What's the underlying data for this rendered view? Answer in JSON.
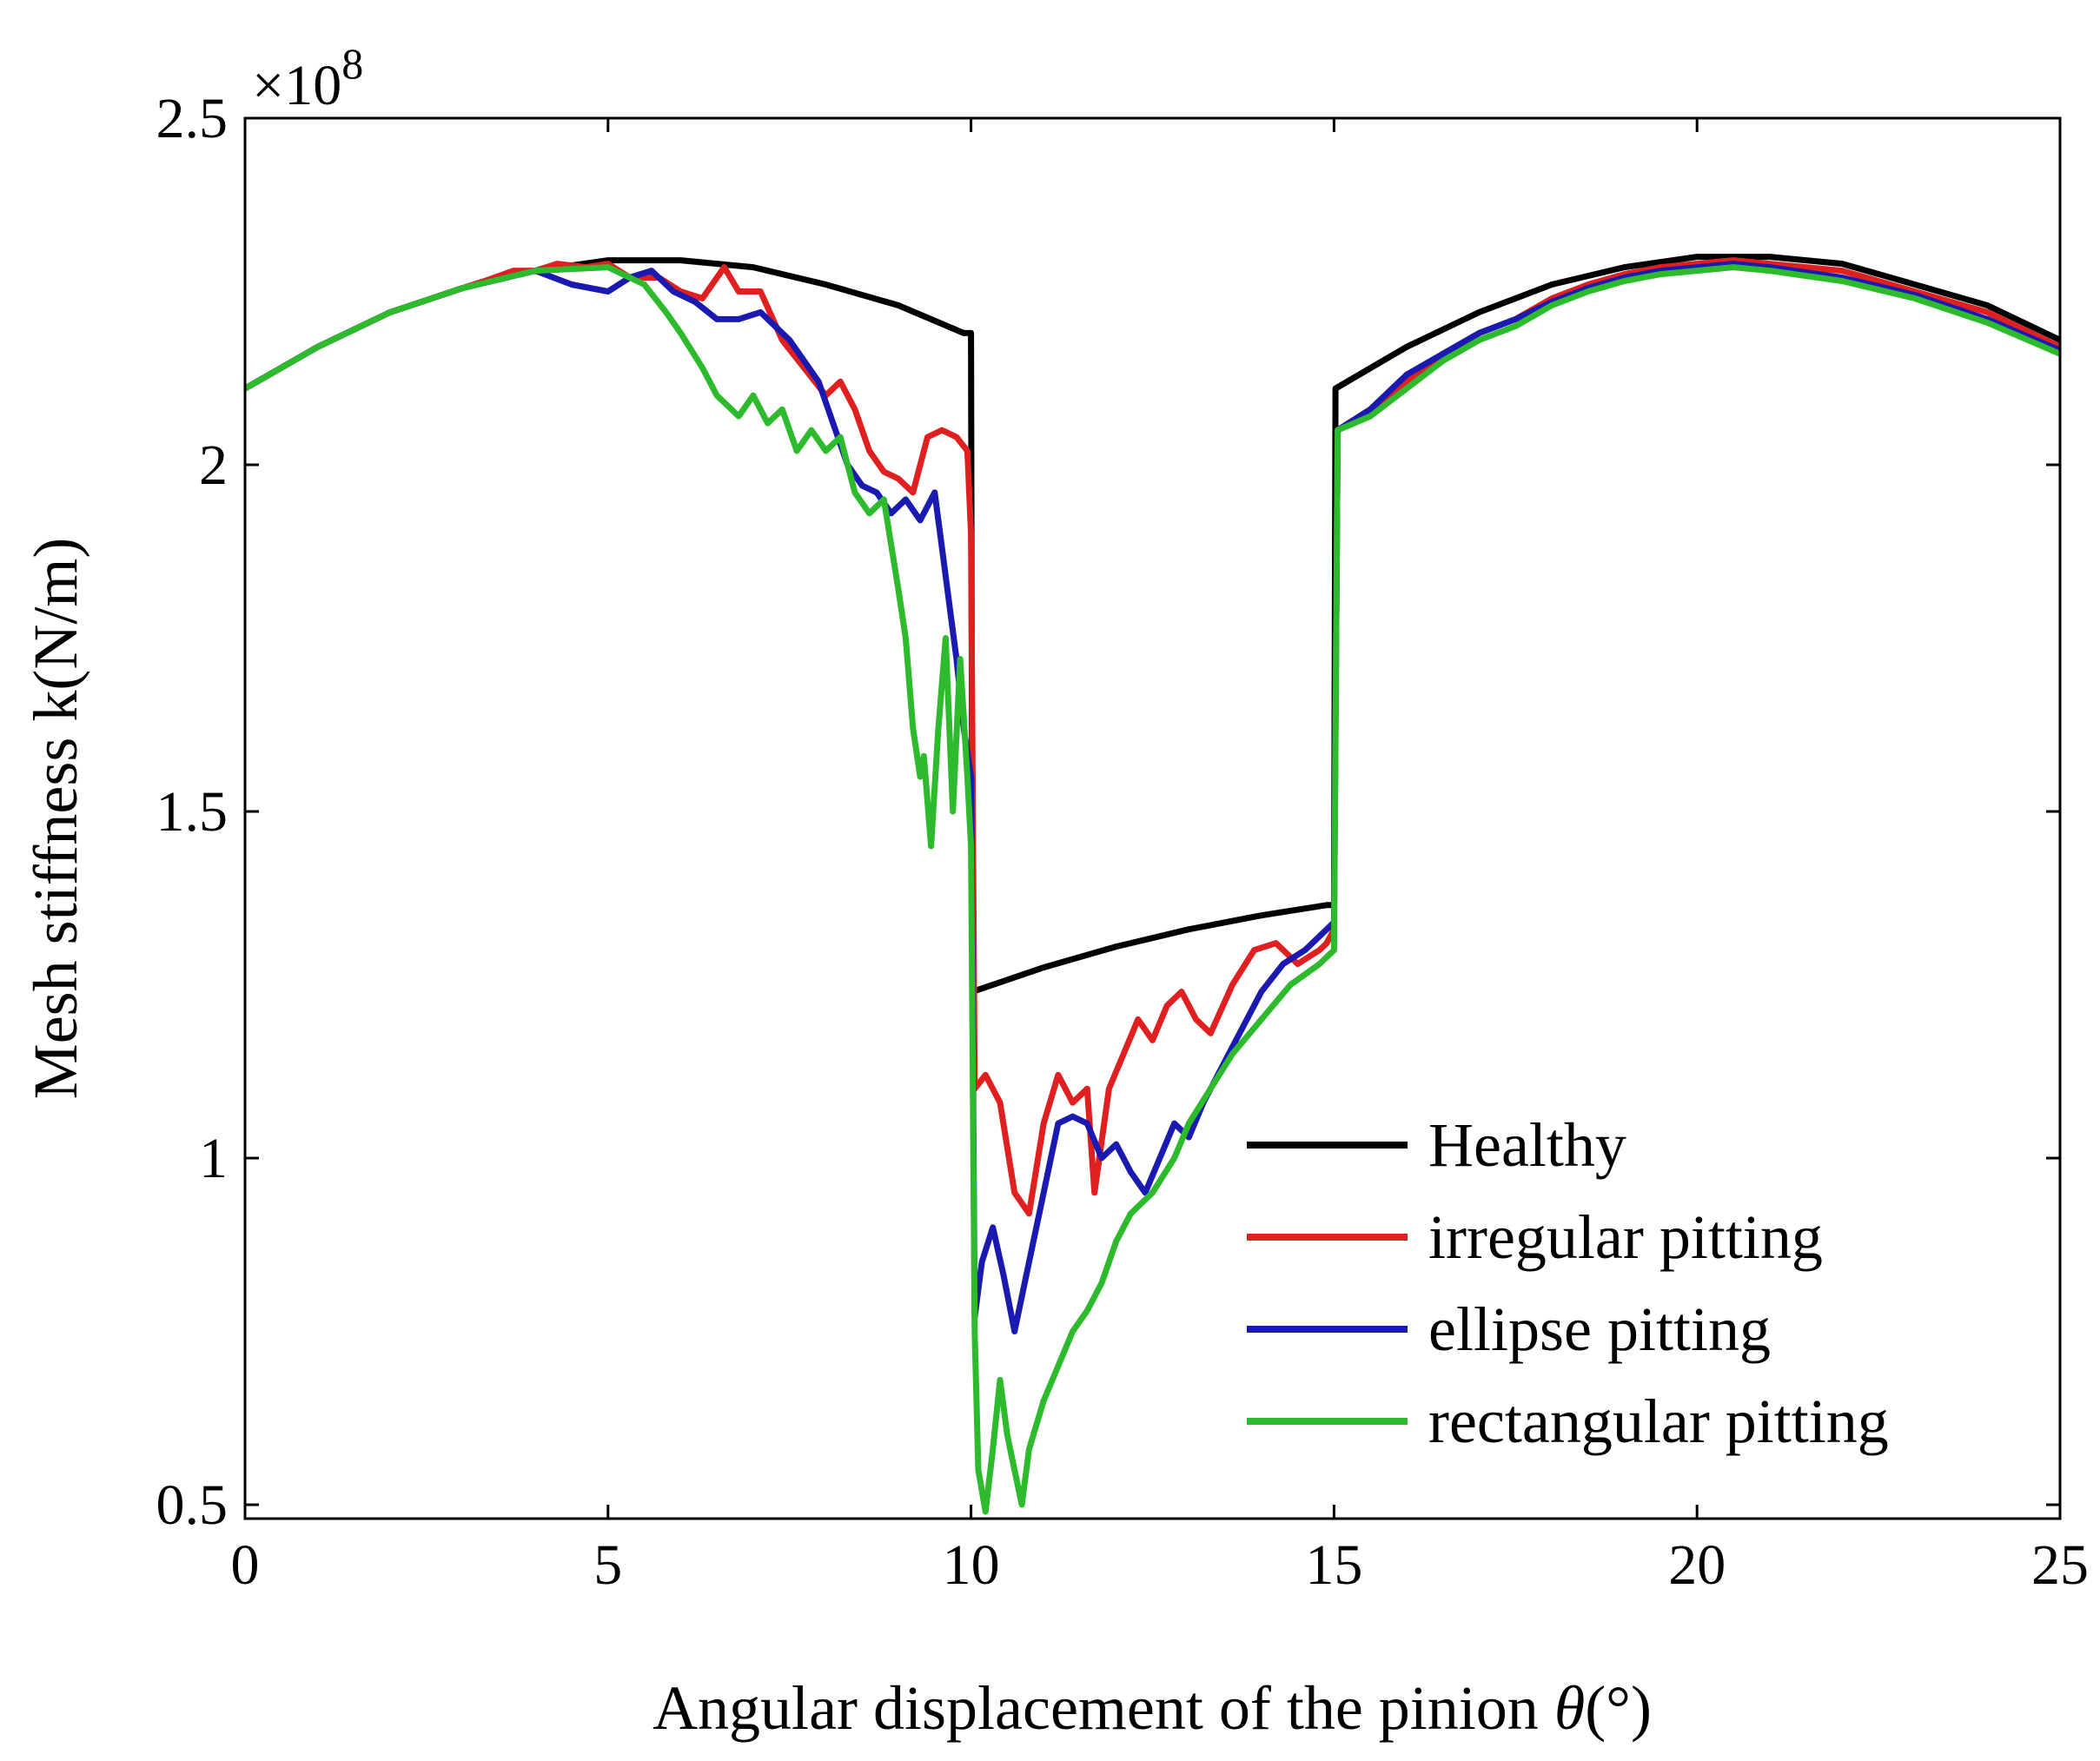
{
  "chart_data": {
    "type": "line",
    "xlabel": "Angular displacement of the pinion θ(°)",
    "xlabel_main": "Angular displacement of the pinion ",
    "xlabel_symbol": "θ",
    "xlabel_unit": "(°)",
    "ylabel": "Mesh stiffness k(N/m)",
    "y_multiplier": "×10",
    "y_multiplier_exp": "8",
    "xlim": [
      0,
      25
    ],
    "ylim": [
      0.48,
      2.5
    ],
    "x_ticks": [
      0,
      5,
      10,
      15,
      20,
      25
    ],
    "x_tick_labels": [
      "0",
      "5",
      "10",
      "15",
      "20",
      "25"
    ],
    "y_ticks": [
      0.5,
      1,
      1.5,
      2,
      2.5
    ],
    "y_tick_labels": [
      "0.5",
      "1",
      "1.5",
      "2",
      "2.5"
    ],
    "grid": false,
    "legend_position": "bottom-right",
    "series": [
      {
        "name": "Healthy",
        "color": "#000000",
        "points": [
          [
            0,
            2.11
          ],
          [
            1,
            2.17
          ],
          [
            2,
            2.22
          ],
          [
            3,
            2.255
          ],
          [
            4,
            2.28
          ],
          [
            5,
            2.295
          ],
          [
            6,
            2.295
          ],
          [
            7,
            2.285
          ],
          [
            8,
            2.26
          ],
          [
            9,
            2.23
          ],
          [
            9.9,
            2.19
          ],
          [
            10,
            2.19
          ],
          [
            10.02,
            1.24
          ],
          [
            11,
            1.275
          ],
          [
            12,
            1.305
          ],
          [
            13,
            1.33
          ],
          [
            14,
            1.35
          ],
          [
            14.9,
            1.365
          ],
          [
            15,
            1.365
          ],
          [
            15.02,
            2.11
          ],
          [
            16,
            2.17
          ],
          [
            17,
            2.22
          ],
          [
            18,
            2.26
          ],
          [
            19,
            2.285
          ],
          [
            20,
            2.3
          ],
          [
            21,
            2.3
          ],
          [
            22,
            2.29
          ],
          [
            23,
            2.26
          ],
          [
            24,
            2.23
          ],
          [
            25,
            2.18
          ]
        ]
      },
      {
        "name": "irregular pitting",
        "color": "#e02020",
        "points": [
          [
            0,
            2.11
          ],
          [
            1,
            2.17
          ],
          [
            2,
            2.22
          ],
          [
            3,
            2.255
          ],
          [
            3.3,
            2.265
          ],
          [
            3.7,
            2.28
          ],
          [
            4,
            2.28
          ],
          [
            4.3,
            2.29
          ],
          [
            4.7,
            2.285
          ],
          [
            5,
            2.29
          ],
          [
            5.3,
            2.27
          ],
          [
            5.7,
            2.27
          ],
          [
            6,
            2.25
          ],
          [
            6.3,
            2.24
          ],
          [
            6.6,
            2.285
          ],
          [
            6.8,
            2.25
          ],
          [
            7.1,
            2.25
          ],
          [
            7.4,
            2.18
          ],
          [
            7.7,
            2.14
          ],
          [
            8,
            2.1
          ],
          [
            8.2,
            2.12
          ],
          [
            8.4,
            2.08
          ],
          [
            8.6,
            2.02
          ],
          [
            8.8,
            1.99
          ],
          [
            9.0,
            1.98
          ],
          [
            9.2,
            1.96
          ],
          [
            9.4,
            2.04
          ],
          [
            9.6,
            2.05
          ],
          [
            9.8,
            2.04
          ],
          [
            9.95,
            2.02
          ],
          [
            10.0,
            1.9
          ],
          [
            10.05,
            1.1
          ],
          [
            10.2,
            1.12
          ],
          [
            10.4,
            1.08
          ],
          [
            10.6,
            0.95
          ],
          [
            10.8,
            0.92
          ],
          [
            11.0,
            1.05
          ],
          [
            11.2,
            1.12
          ],
          [
            11.4,
            1.08
          ],
          [
            11.6,
            1.1
          ],
          [
            11.7,
            0.95
          ],
          [
            11.9,
            1.1
          ],
          [
            12.1,
            1.15
          ],
          [
            12.3,
            1.2
          ],
          [
            12.5,
            1.17
          ],
          [
            12.7,
            1.22
          ],
          [
            12.9,
            1.24
          ],
          [
            13.1,
            1.2
          ],
          [
            13.3,
            1.18
          ],
          [
            13.6,
            1.25
          ],
          [
            13.9,
            1.3
          ],
          [
            14.2,
            1.31
          ],
          [
            14.5,
            1.28
          ],
          [
            14.8,
            1.3
          ],
          [
            14.9,
            1.31
          ],
          [
            15.0,
            1.33
          ],
          [
            15.05,
            2.05
          ],
          [
            15.5,
            2.08
          ],
          [
            16,
            2.12
          ],
          [
            16.5,
            2.16
          ],
          [
            17,
            2.19
          ],
          [
            17.5,
            2.21
          ],
          [
            18,
            2.24
          ],
          [
            18.5,
            2.26
          ],
          [
            19,
            2.275
          ],
          [
            19.5,
            2.285
          ],
          [
            20,
            2.29
          ],
          [
            20.5,
            2.295
          ],
          [
            21,
            2.29
          ],
          [
            22,
            2.28
          ],
          [
            23,
            2.25
          ],
          [
            24,
            2.22
          ],
          [
            25,
            2.17
          ]
        ]
      },
      {
        "name": "ellipse pitting",
        "color": "#1a1ab0",
        "points": [
          [
            0,
            2.11
          ],
          [
            1,
            2.17
          ],
          [
            2,
            2.22
          ],
          [
            3,
            2.255
          ],
          [
            4,
            2.28
          ],
          [
            4.5,
            2.26
          ],
          [
            5,
            2.25
          ],
          [
            5.3,
            2.27
          ],
          [
            5.6,
            2.28
          ],
          [
            5.9,
            2.25
          ],
          [
            6.2,
            2.235
          ],
          [
            6.5,
            2.21
          ],
          [
            6.8,
            2.21
          ],
          [
            7.1,
            2.22
          ],
          [
            7.3,
            2.2
          ],
          [
            7.5,
            2.18
          ],
          [
            7.7,
            2.15
          ],
          [
            7.9,
            2.12
          ],
          [
            8.1,
            2.06
          ],
          [
            8.3,
            2.0
          ],
          [
            8.5,
            1.97
          ],
          [
            8.7,
            1.96
          ],
          [
            8.9,
            1.93
          ],
          [
            9.1,
            1.95
          ],
          [
            9.3,
            1.92
          ],
          [
            9.5,
            1.96
          ],
          [
            9.6,
            1.88
          ],
          [
            9.7,
            1.8
          ],
          [
            9.8,
            1.72
          ],
          [
            9.9,
            1.62
          ],
          [
            10.0,
            1.55
          ],
          [
            10.05,
            0.77
          ],
          [
            10.15,
            0.85
          ],
          [
            10.3,
            0.9
          ],
          [
            10.45,
            0.83
          ],
          [
            10.6,
            0.75
          ],
          [
            10.8,
            0.85
          ],
          [
            11,
            0.95
          ],
          [
            11.2,
            1.05
          ],
          [
            11.4,
            1.06
          ],
          [
            11.6,
            1.05
          ],
          [
            11.8,
            1.0
          ],
          [
            12.0,
            1.02
          ],
          [
            12.2,
            0.98
          ],
          [
            12.4,
            0.95
          ],
          [
            12.6,
            1.0
          ],
          [
            12.8,
            1.05
          ],
          [
            13.0,
            1.03
          ],
          [
            13.2,
            1.08
          ],
          [
            13.4,
            1.12
          ],
          [
            13.6,
            1.16
          ],
          [
            13.8,
            1.2
          ],
          [
            14.0,
            1.24
          ],
          [
            14.3,
            1.28
          ],
          [
            14.6,
            1.3
          ],
          [
            14.9,
            1.33
          ],
          [
            15.0,
            1.34
          ],
          [
            15.05,
            2.05
          ],
          [
            15.5,
            2.08
          ],
          [
            16,
            2.13
          ],
          [
            16.5,
            2.16
          ],
          [
            17,
            2.19
          ],
          [
            17.5,
            2.21
          ],
          [
            18,
            2.235
          ],
          [
            18.5,
            2.255
          ],
          [
            19,
            2.27
          ],
          [
            19.5,
            2.28
          ],
          [
            20,
            2.285
          ],
          [
            20.5,
            2.29
          ],
          [
            21,
            2.285
          ],
          [
            22,
            2.27
          ],
          [
            23,
            2.245
          ],
          [
            24,
            2.21
          ],
          [
            25,
            2.165
          ]
        ]
      },
      {
        "name": "rectangular pitting",
        "color": "#2dbb2d",
        "points": [
          [
            0,
            2.11
          ],
          [
            1,
            2.17
          ],
          [
            2,
            2.22
          ],
          [
            3,
            2.255
          ],
          [
            4,
            2.28
          ],
          [
            5,
            2.285
          ],
          [
            5.5,
            2.26
          ],
          [
            5.8,
            2.22
          ],
          [
            6.0,
            2.19
          ],
          [
            6.3,
            2.14
          ],
          [
            6.5,
            2.1
          ],
          [
            6.8,
            2.07
          ],
          [
            7.0,
            2.1
          ],
          [
            7.2,
            2.06
          ],
          [
            7.4,
            2.08
          ],
          [
            7.6,
            2.02
          ],
          [
            7.8,
            2.05
          ],
          [
            8.0,
            2.02
          ],
          [
            8.2,
            2.04
          ],
          [
            8.4,
            1.96
          ],
          [
            8.6,
            1.93
          ],
          [
            8.8,
            1.95
          ],
          [
            9.0,
            1.82
          ],
          [
            9.1,
            1.75
          ],
          [
            9.2,
            1.62
          ],
          [
            9.3,
            1.55
          ],
          [
            9.35,
            1.58
          ],
          [
            9.45,
            1.45
          ],
          [
            9.55,
            1.62
          ],
          [
            9.65,
            1.75
          ],
          [
            9.75,
            1.5
          ],
          [
            9.85,
            1.72
          ],
          [
            9.95,
            1.55
          ],
          [
            10.0,
            1.45
          ],
          [
            10.05,
            0.75
          ],
          [
            10.1,
            0.55
          ],
          [
            10.2,
            0.49
          ],
          [
            10.3,
            0.58
          ],
          [
            10.4,
            0.68
          ],
          [
            10.5,
            0.6
          ],
          [
            10.6,
            0.55
          ],
          [
            10.7,
            0.5
          ],
          [
            10.8,
            0.58
          ],
          [
            11.0,
            0.65
          ],
          [
            11.2,
            0.7
          ],
          [
            11.4,
            0.75
          ],
          [
            11.6,
            0.78
          ],
          [
            11.8,
            0.82
          ],
          [
            12.0,
            0.88
          ],
          [
            12.2,
            0.92
          ],
          [
            12.5,
            0.95
          ],
          [
            12.8,
            1.0
          ],
          [
            13.0,
            1.05
          ],
          [
            13.3,
            1.1
          ],
          [
            13.6,
            1.15
          ],
          [
            14.0,
            1.2
          ],
          [
            14.4,
            1.25
          ],
          [
            14.8,
            1.28
          ],
          [
            15.0,
            1.3
          ],
          [
            15.05,
            2.05
          ],
          [
            15.5,
            2.07
          ],
          [
            16,
            2.11
          ],
          [
            16.5,
            2.15
          ],
          [
            17,
            2.18
          ],
          [
            17.5,
            2.2
          ],
          [
            18,
            2.23
          ],
          [
            18.5,
            2.25
          ],
          [
            19,
            2.265
          ],
          [
            19.5,
            2.275
          ],
          [
            20,
            2.28
          ],
          [
            20.5,
            2.285
          ],
          [
            21,
            2.28
          ],
          [
            22,
            2.265
          ],
          [
            23,
            2.24
          ],
          [
            24,
            2.205
          ],
          [
            25,
            2.16
          ]
        ]
      }
    ]
  }
}
